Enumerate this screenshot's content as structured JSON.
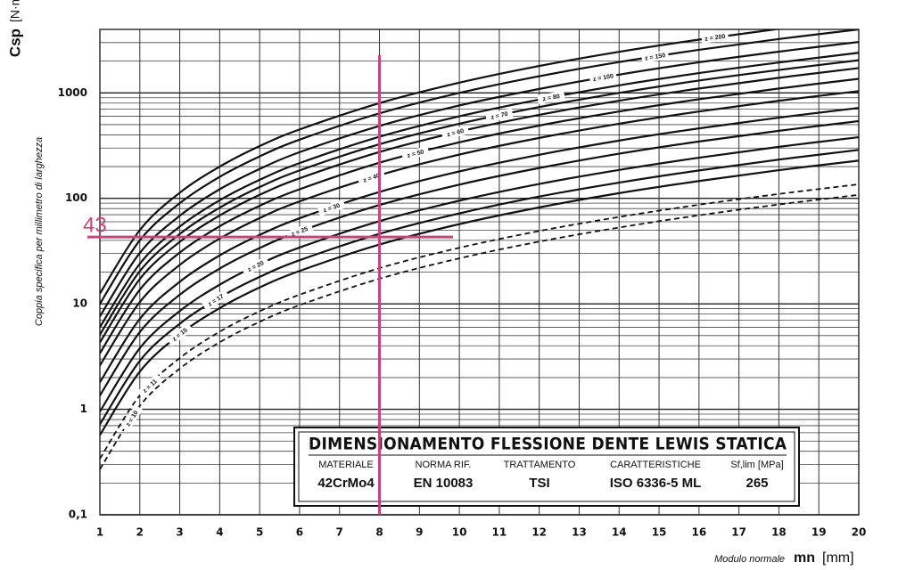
{
  "chart_data": {
    "type": "line",
    "y_label_symbol": "Csp",
    "y_label_unit": "[N·m/mm]",
    "y_label_text": "Coppia specifica per millimetro di larghezza",
    "x_label_text": "Modulo normale",
    "x_label_symbol": "mn",
    "x_label_unit": "[mm]",
    "log_y": true,
    "grid": true,
    "xlim": [
      1,
      20
    ],
    "xticks": [
      1,
      2,
      3,
      4,
      5,
      6,
      7,
      8,
      9,
      10,
      11,
      12,
      13,
      14,
      15,
      16,
      17,
      18,
      19,
      20
    ],
    "ylim": [
      0.1,
      4000
    ],
    "yticks": [
      {
        "value": 0.1,
        "label": "0,1"
      },
      1,
      10,
      100,
      1000
    ],
    "x": [
      1,
      2,
      3,
      4,
      5,
      6,
      8,
      10,
      12,
      14,
      16,
      18,
      20
    ],
    "series": [
      {
        "name": "z = 10",
        "color": "#111111",
        "dashed": true,
        "values": [
          0.27,
          1.08,
          2.43,
          4.32,
          6.75,
          9.72,
          17.3,
          27,
          38.9,
          52.9,
          69.1,
          87.5,
          108
        ]
      },
      {
        "name": "z = 11",
        "color": "#111111",
        "dashed": true,
        "values": [
          0.34,
          1.36,
          3.06,
          5.44,
          8.5,
          12.2,
          21.8,
          34,
          49,
          66.6,
          87,
          110,
          136
        ]
      },
      {
        "name": "z = 15",
        "color": "#111111",
        "values": [
          0.57,
          2.28,
          5.13,
          9.12,
          14.3,
          20.5,
          36.5,
          57,
          82.1,
          112,
          146,
          185,
          228
        ]
      },
      {
        "name": "z = 17",
        "color": "#111111",
        "values": [
          0.72,
          2.88,
          6.48,
          11.5,
          18,
          25.9,
          46.1,
          72,
          104,
          141,
          184,
          233,
          288
        ]
      },
      {
        "name": "z = 20",
        "color": "#111111",
        "values": [
          0.95,
          3.8,
          8.55,
          15.2,
          23.8,
          34.2,
          60.8,
          95,
          137,
          186,
          243,
          308,
          380
        ]
      },
      {
        "name": "z = 25",
        "color": "#111111",
        "values": [
          1.35,
          5.4,
          12.2,
          21.6,
          33.8,
          48.6,
          86.4,
          135,
          194,
          265,
          346,
          437,
          540
        ]
      },
      {
        "name": "z = 30",
        "color": "#111111",
        "values": [
          1.8,
          7.2,
          16.2,
          28.8,
          45,
          64.8,
          115,
          180,
          259,
          353,
          461,
          583,
          720
        ]
      },
      {
        "name": "z = 40",
        "color": "#111111",
        "values": [
          2.6,
          10.4,
          23.4,
          41.6,
          65,
          93.6,
          166,
          260,
          374,
          510,
          666,
          842,
          1040
        ]
      },
      {
        "name": "z = 50",
        "color": "#111111",
        "values": [
          3.4,
          13.6,
          30.6,
          54.4,
          85,
          122,
          218,
          340,
          490,
          666,
          870,
          1100,
          1360
        ]
      },
      {
        "name": "z = 60",
        "color": "#111111",
        "values": [
          4.3,
          17.2,
          38.7,
          68.8,
          108,
          155,
          275,
          430,
          619,
          843,
          1100,
          1390,
          1720
        ]
      },
      {
        "name": "z = 70",
        "color": "#111111",
        "values": [
          5.1,
          20.4,
          45.9,
          81.6,
          128,
          184,
          326,
          510,
          734,
          1000,
          1310,
          1650,
          2040
        ]
      },
      {
        "name": "z = 80",
        "color": "#111111",
        "values": [
          6,
          24,
          54,
          96,
          150,
          216,
          384,
          600,
          864,
          1180,
          1540,
          1940,
          2400
        ]
      },
      {
        "name": "z = 100",
        "color": "#111111",
        "values": [
          7.6,
          30.4,
          68.4,
          122,
          190,
          274,
          486,
          760,
          1090,
          1490,
          1950,
          2460,
          3040
        ]
      },
      {
        "name": "z = 150",
        "color": "#111111",
        "values": [
          10,
          40,
          90,
          160,
          250,
          360,
          640,
          1000,
          1440,
          1960,
          2560,
          3240,
          4000
        ]
      },
      {
        "name": "z = 200",
        "color": "#111111",
        "values": [
          12.5,
          50,
          113,
          200,
          313,
          450,
          800,
          1250,
          1800,
          2450,
          3200,
          4050,
          5000
        ]
      }
    ],
    "marker": {
      "x": 8,
      "y": 43,
      "color": "#c8437a"
    },
    "info_box": {
      "title": "DIMENSIONAMENTO FLESSIONE DENTE LEWIS STATICA",
      "headers": [
        "MATERIALE",
        "NORMA RIF.",
        "TRATTAMENTO",
        "CARATTERISTICHE",
        "Sf,lim [MPa]"
      ],
      "values": [
        "42CrMo4",
        "EN 10083",
        "TSI",
        "ISO 6336-5 ML",
        "265"
      ]
    }
  }
}
